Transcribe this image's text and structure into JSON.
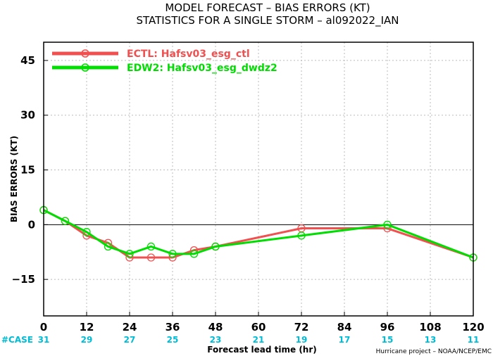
{
  "title_line1": "MODEL FORECAST – BIAS ERRORS (KT)",
  "title_line2": "STATISTICS FOR A SINGLE STORM – al092022_IAN",
  "credit": "Hurricane project – NOAA/NCEP/EMC",
  "case_label": "#CASE",
  "colors": {
    "case": "#00bcd4",
    "ectl": "#f05050",
    "edw2": "#00dd00"
  },
  "chart_data": {
    "type": "line",
    "title": "MODEL FORECAST – BIAS ERRORS (KT)",
    "subtitle": "STATISTICS FOR A SINGLE STORM – al092022_IAN",
    "xlabel": "Forecast lead time (hr)",
    "ylabel": "BIAS ERRORS (KT)",
    "xlim": [
      0,
      120
    ],
    "ylim": [
      -25,
      50
    ],
    "xticks": [
      0,
      12,
      24,
      36,
      48,
      60,
      72,
      84,
      96,
      108,
      120
    ],
    "yticks": [
      -15,
      0,
      15,
      30,
      45
    ],
    "grid": true,
    "legend_position": "top-left",
    "cases": [
      31,
      29,
      27,
      25,
      23,
      21,
      19,
      17,
      15,
      13,
      11
    ],
    "series": [
      {
        "name": "ECTL: Hafsv03_esg_ctl",
        "color": "#f05050",
        "x": [
          0,
          6,
          12,
          18,
          24,
          30,
          36,
          42,
          48,
          72,
          96,
          120
        ],
        "y": [
          4,
          1,
          -3,
          -5,
          -9,
          -9,
          -9,
          -7,
          -6,
          -1,
          -1,
          -9
        ]
      },
      {
        "name": "EDW2: Hafsv03_esg_dwdz2",
        "color": "#00dd00",
        "x": [
          0,
          6,
          12,
          18,
          24,
          30,
          36,
          42,
          48,
          72,
          96,
          120
        ],
        "y": [
          4,
          1,
          -2,
          -6,
          -8,
          -6,
          -8,
          -8,
          -6,
          -3,
          0,
          -9
        ]
      }
    ]
  }
}
